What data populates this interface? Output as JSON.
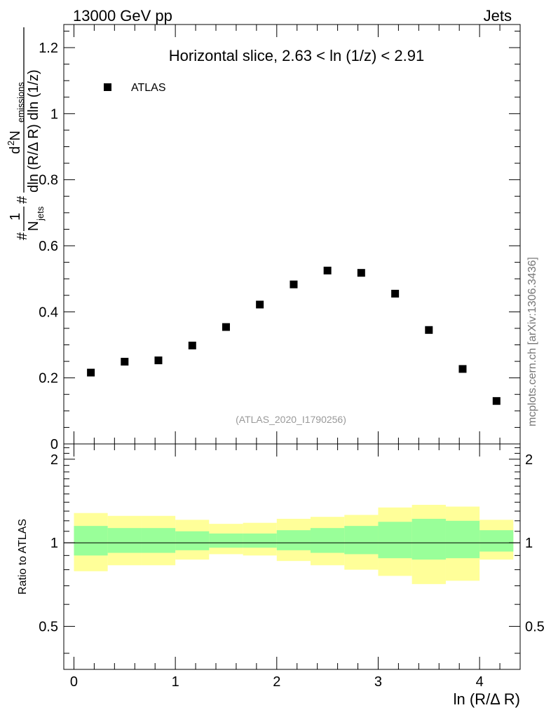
{
  "header": {
    "left": "13000 GeV pp",
    "right": "Jets"
  },
  "side_label": "mcplots.cern.ch [arXiv:1306.3436]",
  "chart_data": [
    {
      "type": "scatter",
      "panel": "main",
      "title": "Horizontal slice, 2.63 < ln (1/z) < 2.91",
      "watermark": "(ATLAS_2020_I1790256)",
      "ylabel": {
        "prefix": "#",
        "frac1_num": "1",
        "frac1_den": "N",
        "frac1_den_sub": "jets",
        "mid_hash": "#",
        "frac2_num": "d",
        "frac2_num_sup": "2",
        "frac2_num_main": " N",
        "frac2_num_sub": "emissions",
        "frac2_den": "dln (R/Δ R) dln (1/z)"
      },
      "legend": [
        {
          "label": "ATLAS",
          "marker": "square",
          "color": "#000000"
        }
      ],
      "legend_position": "top-left",
      "xlim": [
        -0.1,
        4.4
      ],
      "ylim": [
        0,
        1.27
      ],
      "y_ticks": [
        0,
        0.2,
        0.4,
        0.6,
        0.8,
        1,
        1.2
      ],
      "y_tick_labels": [
        "0",
        "0.2",
        "0.4",
        "0.6",
        "0.8",
        "1",
        "1.2"
      ],
      "series": [
        {
          "name": "ATLAS",
          "x": [
            0.167,
            0.5,
            0.833,
            1.167,
            1.5,
            1.833,
            2.167,
            2.5,
            2.833,
            3.167,
            3.5,
            3.833,
            4.167
          ],
          "y": [
            0.216,
            0.249,
            0.253,
            0.298,
            0.354,
            0.422,
            0.483,
            0.525,
            0.518,
            0.455,
            0.345,
            0.227,
            0.13
          ]
        }
      ]
    },
    {
      "type": "area",
      "panel": "ratio",
      "ylabel": "Ratio to ATLAS",
      "xlabel": "ln (R/Δ R)",
      "xlim": [
        -0.1,
        4.4
      ],
      "ylim": [
        0.35,
        2.27
      ],
      "x_ticks": [
        0,
        1,
        2,
        3,
        4
      ],
      "x_tick_labels": [
        "0",
        "1",
        "2",
        "3",
        "4"
      ],
      "y_ticks": [
        0.5,
        1,
        2
      ],
      "y_tick_labels": [
        "0.5",
        "1",
        "2"
      ],
      "reference_line": 1,
      "bin_edges": [
        0,
        0.333,
        0.667,
        1,
        1.333,
        1.667,
        2,
        2.333,
        2.667,
        3,
        3.333,
        3.667,
        4,
        4.333
      ],
      "bands": [
        {
          "name": "outer uncertainty",
          "color": "#ffff99",
          "upper": [
            1.28,
            1.25,
            1.25,
            1.21,
            1.17,
            1.18,
            1.22,
            1.24,
            1.26,
            1.34,
            1.37,
            1.35,
            1.21
          ],
          "lower": [
            0.79,
            0.83,
            0.83,
            0.87,
            0.91,
            0.9,
            0.86,
            0.83,
            0.8,
            0.76,
            0.71,
            0.73,
            0.87
          ]
        },
        {
          "name": "inner uncertainty",
          "color": "#99ff99",
          "upper": [
            1.15,
            1.13,
            1.13,
            1.1,
            1.08,
            1.08,
            1.11,
            1.13,
            1.15,
            1.19,
            1.22,
            1.2,
            1.11
          ],
          "lower": [
            0.9,
            0.92,
            0.92,
            0.94,
            0.96,
            0.96,
            0.94,
            0.92,
            0.91,
            0.88,
            0.87,
            0.88,
            0.93
          ]
        }
      ]
    }
  ]
}
